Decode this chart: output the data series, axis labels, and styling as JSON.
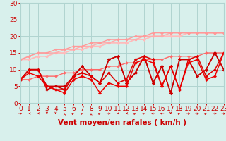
{
  "bg_color": "#d8f0ec",
  "grid_color": "#b0d4d0",
  "xlim": [
    0,
    23
  ],
  "ylim": [
    0,
    30
  ],
  "yticks": [
    0,
    5,
    10,
    15,
    20,
    25,
    30
  ],
  "xticks": [
    0,
    1,
    2,
    3,
    4,
    5,
    6,
    7,
    8,
    9,
    10,
    11,
    12,
    13,
    14,
    15,
    16,
    17,
    18,
    19,
    20,
    21,
    22,
    23
  ],
  "xlabel": "Vent moyen/en rafales ( km/h )",
  "tick_color": "#cc0000",
  "tick_fontsize": 6.5,
  "xlabel_fontsize": 7.5,
  "series": [
    {
      "y": [
        13,
        13,
        14,
        14,
        15,
        15,
        16,
        16,
        17,
        17,
        18,
        18,
        18,
        19,
        19,
        20,
        20,
        20,
        20,
        21,
        21,
        21,
        21,
        21
      ],
      "color": "#ffbbbb",
      "lw": 1.0,
      "marker": "D",
      "ms": 2.0
    },
    {
      "y": [
        13,
        13,
        14,
        14,
        15,
        15,
        16,
        16,
        17,
        17,
        18,
        18,
        18,
        19,
        19,
        20,
        20,
        20,
        20,
        21,
        21,
        21,
        21,
        21
      ],
      "color": "#ffbbbb",
      "lw": 1.0,
      "marker": "D",
      "ms": 2.0
    },
    {
      "y": [
        13,
        14,
        15,
        15,
        15,
        16,
        16,
        17,
        17,
        18,
        18,
        19,
        19,
        19,
        20,
        20,
        20,
        21,
        21,
        21,
        21,
        21,
        21,
        21
      ],
      "color": "#ffaaaa",
      "lw": 1.0,
      "marker": "D",
      "ms": 2.0
    },
    {
      "y": [
        13,
        14,
        15,
        15,
        16,
        16,
        17,
        17,
        18,
        18,
        19,
        19,
        19,
        20,
        20,
        21,
        21,
        21,
        21,
        21,
        21,
        21,
        21,
        21
      ],
      "color": "#ff9999",
      "lw": 1.0,
      "marker": "D",
      "ms": 2.0
    },
    {
      "y": [
        7,
        7,
        8,
        8,
        8,
        9,
        9,
        10,
        10,
        10,
        11,
        11,
        12,
        12,
        13,
        13,
        13,
        14,
        14,
        14,
        14,
        15,
        15,
        15
      ],
      "color": "#ff6666",
      "lw": 1.0,
      "marker": "D",
      "ms": 2.0
    },
    {
      "y": [
        7,
        10,
        10,
        4,
        5,
        4,
        8,
        11,
        8,
        6,
        13,
        14,
        6,
        9,
        14,
        6,
        11,
        3,
        13,
        13,
        8,
        10,
        15,
        10
      ],
      "color": "#cc0000",
      "lw": 1.1,
      "marker": "D",
      "ms": 2.2
    },
    {
      "y": [
        7,
        10,
        10,
        5,
        5,
        5,
        8,
        11,
        8,
        6,
        13,
        14,
        6,
        9,
        14,
        6,
        11,
        3,
        13,
        13,
        8,
        10,
        15,
        10
      ],
      "color": "#cc0000",
      "lw": 1.1,
      "marker": "D",
      "ms": 2.2
    },
    {
      "y": [
        7,
        10,
        10,
        5,
        4,
        4,
        8,
        9,
        8,
        6,
        9,
        6,
        7,
        13,
        14,
        13,
        5,
        11,
        4,
        13,
        14,
        8,
        10,
        15
      ],
      "color": "#dd0000",
      "lw": 1.1,
      "marker": "D",
      "ms": 2.2
    },
    {
      "y": [
        7,
        9,
        8,
        5,
        4,
        3,
        7,
        8,
        7,
        3,
        6,
        5,
        5,
        12,
        13,
        12,
        5,
        11,
        4,
        12,
        13,
        7,
        8,
        15
      ],
      "color": "#ee0000",
      "lw": 1.1,
      "marker": "D",
      "ms": 2.2
    }
  ],
  "arrows": [
    [
      1,
      0
    ],
    [
      -1,
      -1
    ],
    [
      -1,
      -1
    ],
    [
      0,
      -1
    ],
    [
      0,
      -1
    ],
    [
      0,
      1
    ],
    [
      1,
      1
    ],
    [
      1,
      1
    ],
    [
      0,
      1
    ],
    [
      1,
      1
    ],
    [
      1,
      0
    ],
    [
      -1,
      -1
    ],
    [
      -1,
      -1
    ],
    [
      1,
      1
    ],
    [
      1,
      1
    ],
    [
      -1,
      0
    ],
    [
      -1,
      0
    ],
    [
      0,
      -1
    ],
    [
      1,
      1
    ],
    [
      1,
      0
    ],
    [
      1,
      0
    ],
    [
      1,
      1
    ],
    [
      1,
      0
    ],
    [
      1,
      0
    ]
  ]
}
